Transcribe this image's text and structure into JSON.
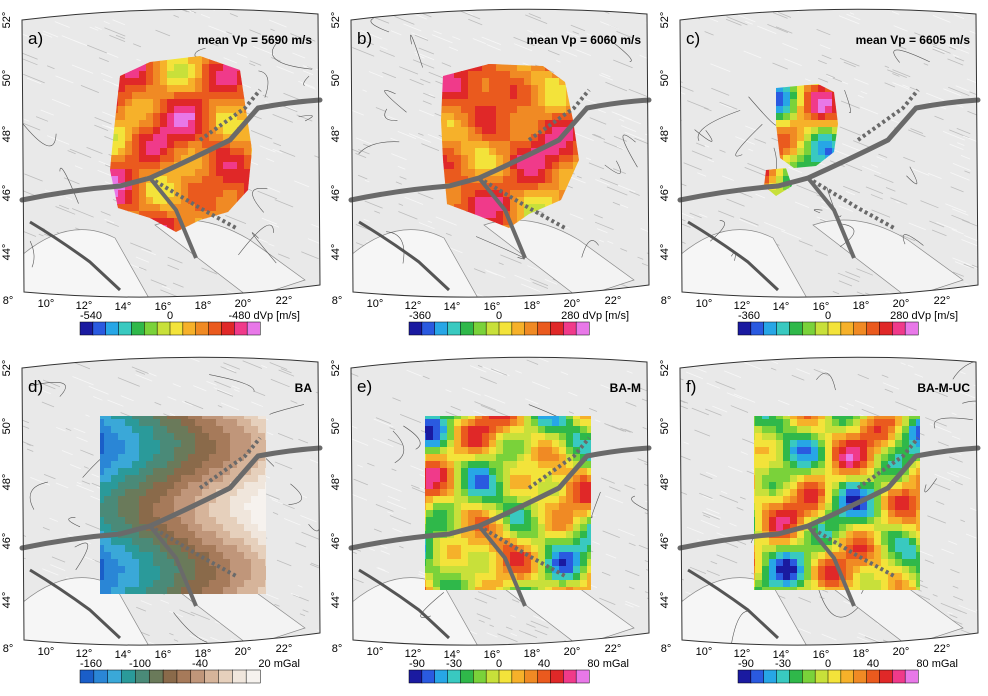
{
  "panels": [
    {
      "label": "a)",
      "title": "mean Vp = 5690 m/s",
      "colorbar": {
        "palette": "dvp",
        "ticks": [
          "-540",
          "0",
          "-480 dVp [m/s]"
        ]
      }
    },
    {
      "label": "b)",
      "title": "mean Vp = 6060 m/s",
      "colorbar": {
        "palette": "dvp",
        "ticks": [
          "-360",
          "0",
          "280 dVp [m/s]"
        ]
      }
    },
    {
      "label": "c)",
      "title": "mean Vp = 6605 m/s",
      "colorbar": {
        "palette": "dvp",
        "ticks": [
          "-360",
          "0",
          "280 dVp [m/s]"
        ]
      }
    },
    {
      "label": "d)",
      "title": "BA",
      "colorbar": {
        "palette": "ba",
        "ticks": [
          "-160",
          "-100",
          "-40",
          "20 mGal"
        ]
      }
    },
    {
      "label": "e)",
      "title": "BA-M",
      "colorbar": {
        "palette": "rainbow",
        "ticks": [
          "-90",
          "-30",
          "0",
          "40",
          "80 mGal"
        ]
      }
    },
    {
      "label": "f)",
      "title": "BA-M-UC",
      "colorbar": {
        "palette": "rainbow",
        "ticks": [
          "-90",
          "-30",
          "0",
          "40",
          "80 mGal"
        ]
      }
    }
  ],
  "axes": {
    "lon_ticks": [
      "8°",
      "10°",
      "12°",
      "14°",
      "16°",
      "18°",
      "20°",
      "22°"
    ],
    "lat_ticks": [
      "44°",
      "46°",
      "48°",
      "50°",
      "52°"
    ]
  },
  "palettes": {
    "dvp": [
      "#1a1aa0",
      "#2a5ae0",
      "#27a6e6",
      "#39c9c0",
      "#2fb84a",
      "#7ad23a",
      "#c8e03a",
      "#f3e33a",
      "#f6b12a",
      "#f08a24",
      "#ea5a1e",
      "#e02828",
      "#f03a8a",
      "#e878e8"
    ],
    "ba": [
      "#1a5ec8",
      "#2a86d6",
      "#3aa8d8",
      "#2a9a9a",
      "#4a8a78",
      "#6a7a5a",
      "#8a6a4a",
      "#a67a5a",
      "#c0967a",
      "#d6b49a",
      "#e6d0bc",
      "#f0e6dc",
      "#f6f2ee"
    ],
    "rainbow": [
      "#1a1aa0",
      "#2a5ae0",
      "#27a6e6",
      "#39c9c0",
      "#2fb84a",
      "#7ad23a",
      "#c8e03a",
      "#f3e33a",
      "#f6b12a",
      "#f08a24",
      "#ea5a1e",
      "#e02828",
      "#f03a8a",
      "#e878e8"
    ]
  }
}
